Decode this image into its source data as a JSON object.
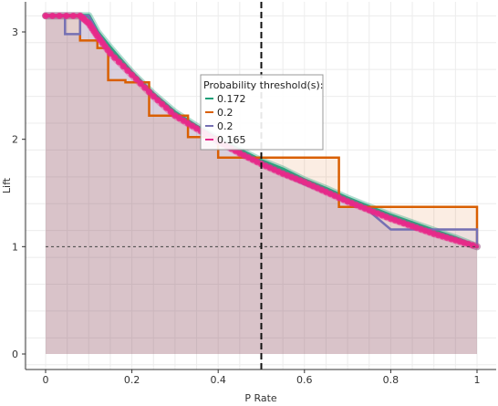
{
  "chart_data": {
    "type": "line",
    "title": "",
    "xlabel": "P Rate",
    "ylabel": "Lift",
    "xlim": [
      -0.06,
      1.06
    ],
    "ylim": [
      -0.12,
      3.3
    ],
    "xticks": [
      0,
      0.2,
      0.4,
      0.6,
      0.8,
      1
    ],
    "xtick_labels": [
      "0",
      "0.2",
      "0.4",
      "0.6",
      "0.8",
      "1"
    ],
    "yticks": [
      0,
      1,
      2,
      3
    ],
    "ytick_labels": [
      "0",
      "1",
      "2",
      "3"
    ],
    "grid": true,
    "threshold_line_x": 0.5,
    "baseline_y": 1,
    "legend": {
      "title": "Probability threshold(s):",
      "placement": "center",
      "entries": [
        {
          "label": "0.172",
          "color": "#1b9e77"
        },
        {
          "label": "0.2",
          "color": "#d95f02"
        },
        {
          "label": "0.2",
          "color": "#7570b3"
        },
        {
          "label": "0.165",
          "color": "#e7298a"
        }
      ]
    },
    "series": [
      {
        "color": "#1b9e77",
        "style": "smooth",
        "points": [
          [
            0.0,
            3.15
          ],
          [
            0.1,
            3.15
          ],
          [
            0.12,
            3.0
          ],
          [
            0.15,
            2.85
          ],
          [
            0.2,
            2.62
          ],
          [
            0.25,
            2.42
          ],
          [
            0.3,
            2.25
          ],
          [
            0.35,
            2.12
          ],
          [
            0.4,
            2.0
          ],
          [
            0.45,
            1.9
          ],
          [
            0.5,
            1.8
          ],
          [
            0.55,
            1.72
          ],
          [
            0.6,
            1.62
          ],
          [
            0.65,
            1.54
          ],
          [
            0.7,
            1.45
          ],
          [
            0.75,
            1.37
          ],
          [
            0.8,
            1.29
          ],
          [
            0.85,
            1.22
          ],
          [
            0.9,
            1.15
          ],
          [
            0.95,
            1.08
          ],
          [
            1.0,
            1.0
          ]
        ]
      },
      {
        "color": "#d95f02",
        "style": "step",
        "points": [
          [
            0.0,
            3.15
          ],
          [
            0.08,
            3.15
          ],
          [
            0.08,
            2.92
          ],
          [
            0.12,
            2.92
          ],
          [
            0.12,
            2.85
          ],
          [
            0.145,
            2.85
          ],
          [
            0.145,
            2.55
          ],
          [
            0.185,
            2.55
          ],
          [
            0.185,
            2.53
          ],
          [
            0.24,
            2.53
          ],
          [
            0.24,
            2.22
          ],
          [
            0.33,
            2.22
          ],
          [
            0.33,
            2.02
          ],
          [
            0.4,
            2.02
          ],
          [
            0.4,
            1.83
          ],
          [
            0.68,
            1.83
          ],
          [
            0.68,
            1.37
          ],
          [
            1.0,
            1.37
          ],
          [
            1.0,
            1.0
          ]
        ]
      },
      {
        "color": "#7570b3",
        "style": "step",
        "points": [
          [
            0.0,
            3.15
          ],
          [
            0.045,
            3.15
          ],
          [
            0.045,
            2.98
          ],
          [
            0.08,
            2.98
          ],
          [
            0.08,
            3.15
          ],
          [
            0.1,
            3.15
          ],
          [
            0.12,
            3.0
          ],
          [
            0.15,
            2.82
          ],
          [
            0.2,
            2.6
          ],
          [
            0.25,
            2.4
          ],
          [
            0.3,
            2.22
          ],
          [
            0.35,
            2.1
          ],
          [
            0.4,
            1.97
          ],
          [
            0.45,
            1.86
          ],
          [
            0.5,
            1.76
          ],
          [
            0.55,
            1.67
          ],
          [
            0.6,
            1.58
          ],
          [
            0.65,
            1.5
          ],
          [
            0.7,
            1.41
          ],
          [
            0.75,
            1.33
          ],
          [
            0.8,
            1.16
          ],
          [
            0.85,
            1.16
          ],
          [
            1.0,
            1.16
          ],
          [
            1.0,
            1.0
          ]
        ]
      },
      {
        "color": "#e7298a",
        "style": "smooth",
        "points": [
          [
            0.0,
            3.15
          ],
          [
            0.08,
            3.15
          ],
          [
            0.1,
            3.08
          ],
          [
            0.12,
            2.96
          ],
          [
            0.15,
            2.8
          ],
          [
            0.2,
            2.6
          ],
          [
            0.25,
            2.4
          ],
          [
            0.3,
            2.22
          ],
          [
            0.35,
            2.1
          ],
          [
            0.4,
            1.98
          ],
          [
            0.45,
            1.87
          ],
          [
            0.5,
            1.77
          ],
          [
            0.55,
            1.68
          ],
          [
            0.6,
            1.6
          ],
          [
            0.65,
            1.51
          ],
          [
            0.7,
            1.42
          ],
          [
            0.75,
            1.34
          ],
          [
            0.8,
            1.26
          ],
          [
            0.85,
            1.19
          ],
          [
            0.9,
            1.12
          ],
          [
            0.95,
            1.06
          ],
          [
            1.0,
            1.0
          ]
        ]
      }
    ]
  }
}
